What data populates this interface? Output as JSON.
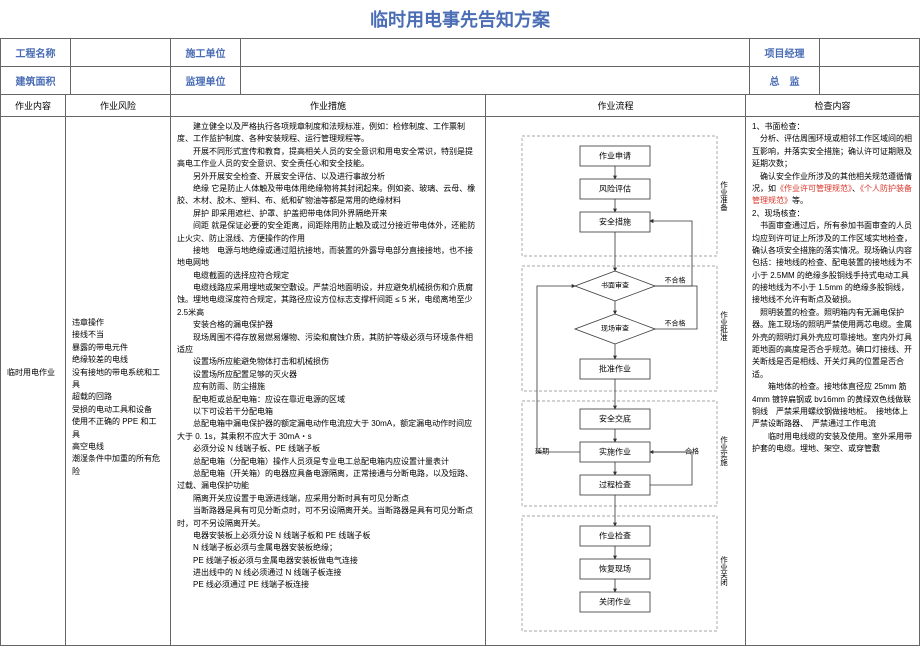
{
  "title": "临时用电事先告知方案",
  "meta": {
    "row1": {
      "l1": "工程名称",
      "l2": "施工单位",
      "l3": "项目经理"
    },
    "row2": {
      "l1": "建筑面积",
      "l2": "监理单位",
      "l3": "总　监"
    }
  },
  "headers": {
    "c1": "作业内容",
    "c2": "作业风险",
    "c3": "作业措施",
    "c4": "作业流程",
    "c5": "检查内容"
  },
  "content_label": "临时用电作业",
  "risks": [
    "违章操作",
    "接线不当",
    "暴露的带电元件",
    "绝缘较差的电线",
    "没有接地的带电系统和工具",
    "超载的回路",
    "受损的电动工具和设备",
    "使用不正确的 PPE 和工具",
    "高空电线",
    "潮湿条件中加重的所有危险"
  ],
  "measures": [
    "建立健全以及严格执行各项规章制度和法规标准，例如：检修制度、工作票制度、工作监护制度、各种安装规程、运行管理规程等。",
    "开展不同形式宣传和教育，提高相关人员的安全意识和用电安全常识，特别是提高电工作业人员的安全意识、安全责任心和安全技能。",
    "另外开展安全检查、开展安全评估、以及进行事故分析",
    "绝缘 它是防止人体触及带电体用绝缘物将其封闭起来。例如瓷、玻璃、云母、橡胶、木材、胶木、塑料、布、纸和矿物油等都是常用的绝缘材料",
    "屏护 即采用遮栏、护罩、护盖把带电体同外界隔绝开来",
    "间距 就是保证必要的安全距离，间距除用防止触及或过分接近带电体外，还能防止火灾、防止混线、方便操作的作用",
    "接地　电源与地绝缘或通过阻抗接地，而装置的外露导电部分直接接地，也不接地电网地",
    "电缆截面的选择应符合规定",
    "电缆线路应采用埋地或架空敷设。严禁沿地面明设，并应避免机械损伤和介质腐蚀。埋地电缆深度符合规定，其路径应设方位标志支撑杆间距 ≤ 5 米，电缆离地至少 2.5米高",
    "安装合格的漏电保护器",
    "现场周围不得存放易燃易爆物、污染和腐蚀介质，其防护等级必须与环境条件相适应",
    "设置场所应能避免物体打击和机械损伤",
    "设置场所应配置足够的灭火器",
    "应有防雨、防尘措施",
    "配电柜或总配电箱：应设在靠近电源的区域",
    "以下可设若干分配电箱",
    "总配电箱中漏电保护器的额定漏电动作电流应大于 30mA，额定漏电动作时间应大于 0. 1s，其乘积不应大于 30mA・s",
    "必须分设 N 线端子板、PE 线端子板",
    "总配电箱（分配电箱）操作人员须是专业电工总配电箱内应设置计量表计",
    "总配电箱（开关箱）的电器应具备电源隔离，正常接通与分断电路，以及短路、过载、漏电保护功能",
    "隔离开关应设置于电源进线端，应采用分断时具有可见分断点",
    "当断路器是具有可见分断点时，可不另设隔离开关。当断路器是具有可见分断点时，可不另设隔离开关。",
    "电器安装板上必须分设 N 线端子板和 PE 线端子板",
    "N 线端子板必须与金属电器安装板绝缘；",
    "PE 线端子板必须与金属电器安装板做电气连接",
    "进出线中的 N 线必须通过 N 线端子板连接",
    "PE 线必须通过 PE 线端子板连接"
  ],
  "check": {
    "p1": "1、书面检查：",
    "p2": "分析、评估周围环境或相邻工作区域间的相互影响，并落实安全措施；确认许可证期限及延期次数；",
    "p3_prefix": "确认安全作业所涉及的其他相关规范遵循情况，如",
    "p3_red1": "《作业许可管理规范》",
    "p3_mid": "、",
    "p3_red2": "《个人防护装备管理规范》",
    "p3_suffix": "等。",
    "p4": "2、现场核查：",
    "p5": "书面审查通过后，所有参加书面审查的人员均应到许可证上所涉及的工作区域实地检查，确认各项安全措施的落实情况。现场确认内容包括：接地线的检查、配电装置的接地线为不小于 2.5MM 的绝缘多股铜线手持式电动工具的接地线为不小于 1.5mm 的绝缘多股铜线，接地线不允许有断点及破损。",
    "p6": "照明装置的检查。照明箱内有无漏电保护器。施工现场的照明严禁使用两芯电缆。金属外壳的照明灯具外壳应可靠接地。室内外灯具距地面的高度是否合乎规范。碘口灯接线、开关断线是否是相线、开关灯具的位置是否合适。",
    "p7": "　箱地体的检查。接地体直径应 25mm 筋 4mm 镀锌扁钢或 bv16mm 的黄绿双色线做联铜线　严禁采用螺纹钢做接地桩。　接地体上严禁设断路器、　严禁通过工作电流",
    "p8": "　临时用电线缆的安装及使用。室外采用带护套的电缆。埋地、架空、或穿管敷"
  },
  "flow": {
    "n1": "作业申请",
    "n2": "风险评估",
    "n3": "安全措施",
    "d1": "书面审查",
    "d2": "现场审查",
    "n4": "批准作业",
    "n5": "安全交底",
    "n6": "实施作业",
    "n7": "过程检查",
    "n8": "作业检查",
    "n9": "恢复现场",
    "n10": "关闭作业",
    "nok": "不合格",
    "ok": "合格",
    "delay": "延期",
    "side1": "作业准备",
    "side2": "作业批准",
    "side3": "作业实施",
    "side4": "作业关闭"
  },
  "colors": {
    "title": "#4a6db5",
    "meta": "#4a6db5",
    "red": "#d9362a",
    "border": "#666666",
    "dash": "#888888",
    "bg": "#ffffff"
  }
}
